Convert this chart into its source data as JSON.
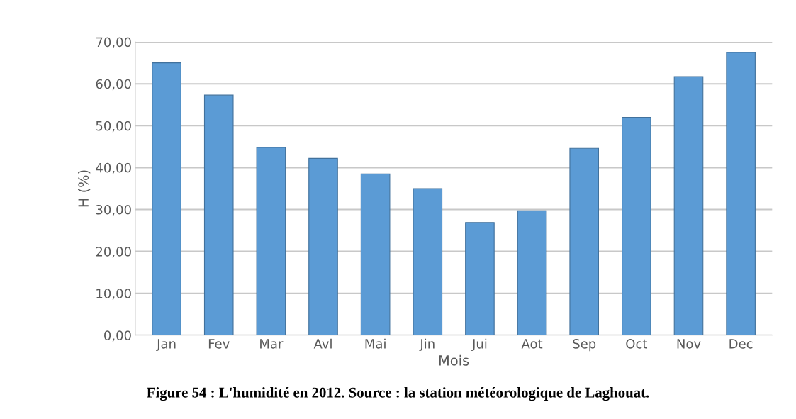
{
  "chart_data": {
    "type": "bar",
    "xlabel": "Mois",
    "ylabel": "H (%)",
    "categories": [
      "Jan",
      "Fev",
      "Mar",
      "Avl",
      "Mai",
      "Jin",
      "Jui",
      "Aot",
      "Sep",
      "Oct",
      "Nov",
      "Dec"
    ],
    "values": [
      65.0,
      57.3,
      44.8,
      42.2,
      38.5,
      35.0,
      26.9,
      29.7,
      44.6,
      52.0,
      61.7,
      67.5
    ],
    "color": "#5b9bd5",
    "ylim": [
      0,
      70
    ],
    "yticks": [
      {
        "value": 0,
        "label": "0,00"
      },
      {
        "value": 10,
        "label": "10,00"
      },
      {
        "value": 20,
        "label": "20,00"
      },
      {
        "value": 30,
        "label": "30,00"
      },
      {
        "value": 40,
        "label": "40,00"
      },
      {
        "value": 50,
        "label": "50,00"
      },
      {
        "value": 60,
        "label": "60,00"
      },
      {
        "value": 70,
        "label": "70,00"
      }
    ],
    "grid": "y",
    "annotations": [
      "Figure 54 : L'humidité en 2012. Source : la station météorologique de Laghouat."
    ]
  }
}
